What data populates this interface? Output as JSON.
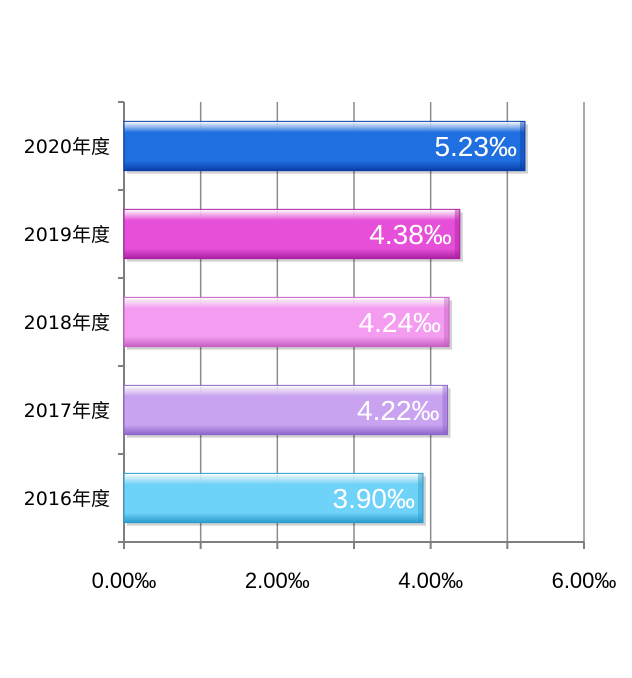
{
  "chart_data": {
    "type": "bar",
    "orientation": "horizontal",
    "categories": [
      "2020年度",
      "2019年度",
      "2018年度",
      "2017年度",
      "2016年度"
    ],
    "values": [
      5.23,
      4.38,
      4.24,
      4.22,
      3.9
    ],
    "data_labels": [
      "5.23‰",
      "4.38‰",
      "4.24‰",
      "4.22‰",
      "3.90‰"
    ],
    "bar_colors": [
      "#1f6fe0",
      "#e650d8",
      "#f39cf0",
      "#c9a2f0",
      "#6fd2f8"
    ],
    "bar_dark_colors": [
      "#0a3fa8",
      "#a821a0",
      "#c65fc4",
      "#8d66c8",
      "#2a9ccc"
    ],
    "xlim": [
      0,
      6
    ],
    "x_ticks": [
      0,
      2,
      4,
      6
    ],
    "x_tick_labels": [
      "0.00‰",
      "2.00‰",
      "4.00‰",
      "6.00‰"
    ],
    "grid": "vertical lines at every 1.00‰",
    "legend": "none",
    "title": "",
    "xlabel": "",
    "ylabel": ""
  }
}
